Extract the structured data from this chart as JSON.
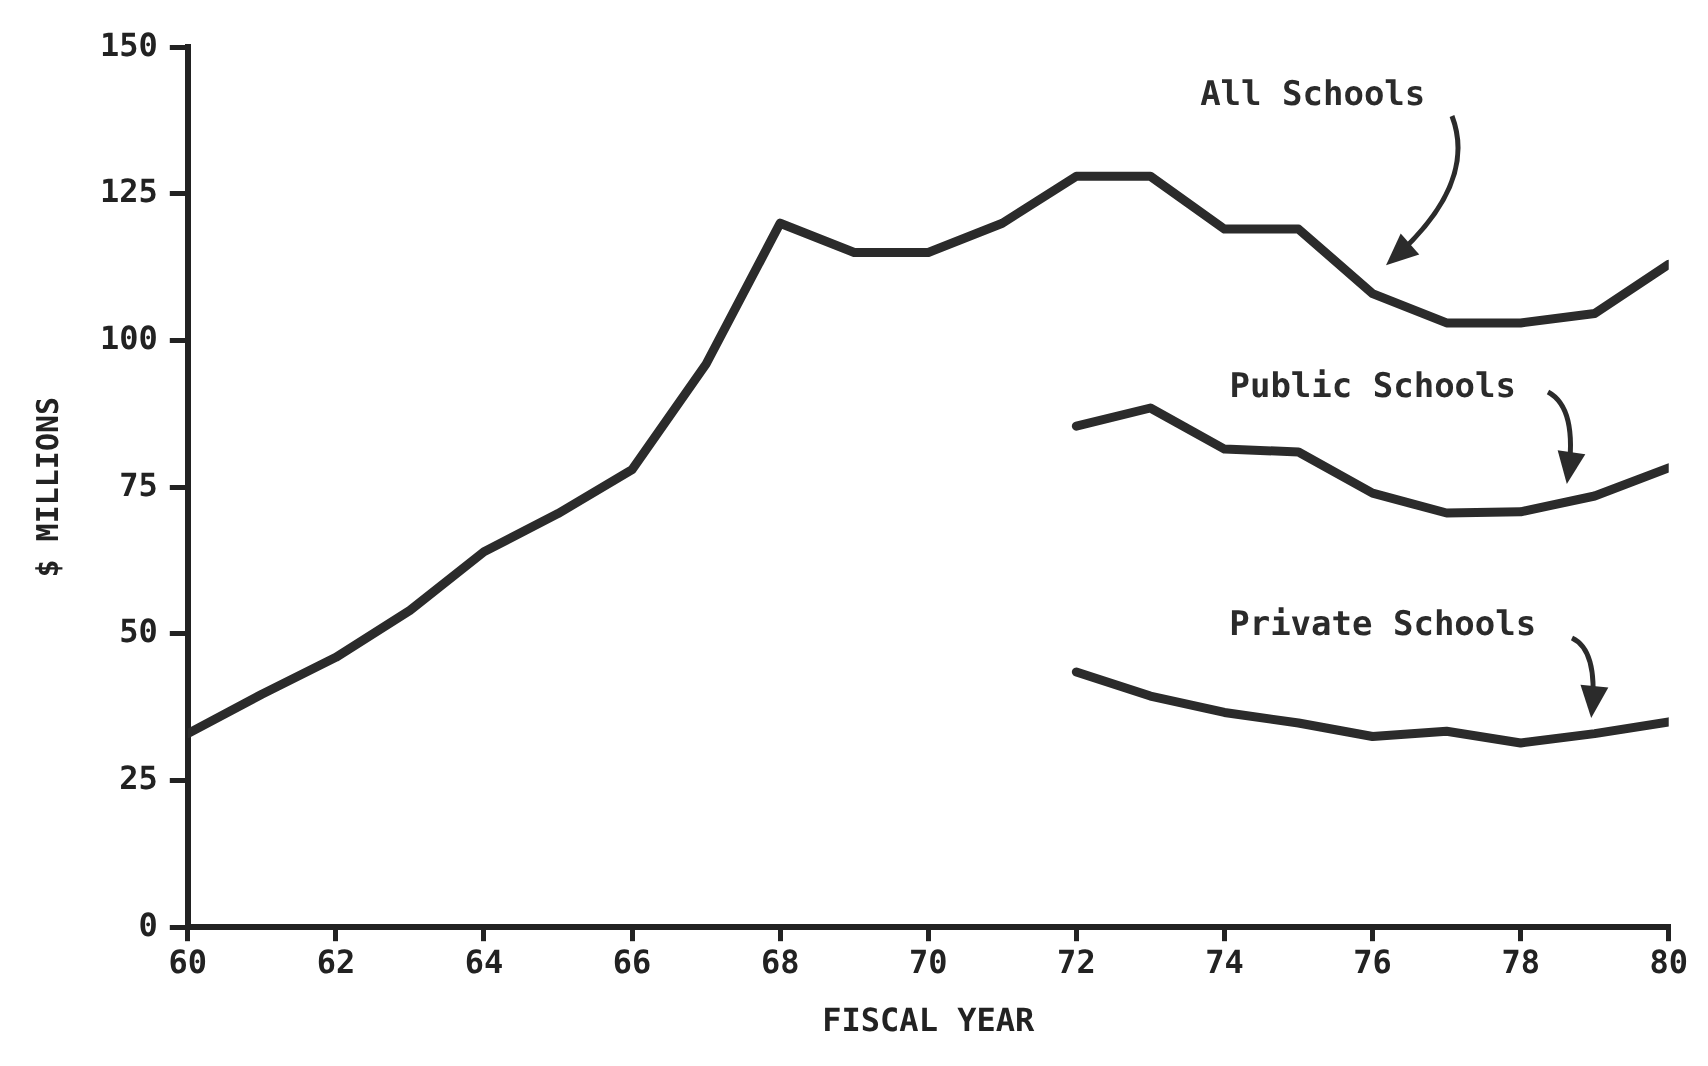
{
  "chart_data": {
    "type": "line",
    "xlabel": "FISCAL YEAR",
    "ylabel": "$ MILLIONS",
    "xlim": [
      60,
      80
    ],
    "xticks": [
      60,
      62,
      64,
      66,
      68,
      70,
      72,
      74,
      76,
      78,
      80
    ],
    "ylim": [
      0,
      150
    ],
    "yticks": [
      0,
      25,
      50,
      75,
      100,
      125,
      150
    ],
    "grid": false,
    "legend": false,
    "series": [
      {
        "name": "All Schools",
        "color": "#2b2b2b",
        "x": [
          60,
          61,
          62,
          63,
          64,
          65,
          66,
          67,
          68,
          69,
          70,
          71,
          72,
          73,
          74,
          75,
          76,
          77,
          78,
          79,
          80
        ],
        "values": [
          33,
          39.7,
          46,
          54,
          64,
          70.5,
          78,
          96,
          120,
          115,
          115,
          120,
          128,
          128,
          119,
          119,
          108,
          103,
          103,
          104.6,
          113
        ]
      },
      {
        "name": "Public Schools",
        "color": "#2b2b2b",
        "x": [
          72,
          73,
          74,
          75,
          76,
          77,
          78,
          79,
          80
        ],
        "values": [
          85.4,
          88.5,
          81.5,
          81,
          74,
          70.6,
          70.8,
          73.5,
          78.3
        ]
      },
      {
        "name": "Private Schools",
        "color": "#2b2b2b",
        "x": [
          72,
          73,
          74,
          75,
          76,
          77,
          78,
          79,
          80
        ],
        "values": [
          43.5,
          39.4,
          36.6,
          34.8,
          32.5,
          33.4,
          31.4,
          33,
          35
        ]
      }
    ]
  }
}
